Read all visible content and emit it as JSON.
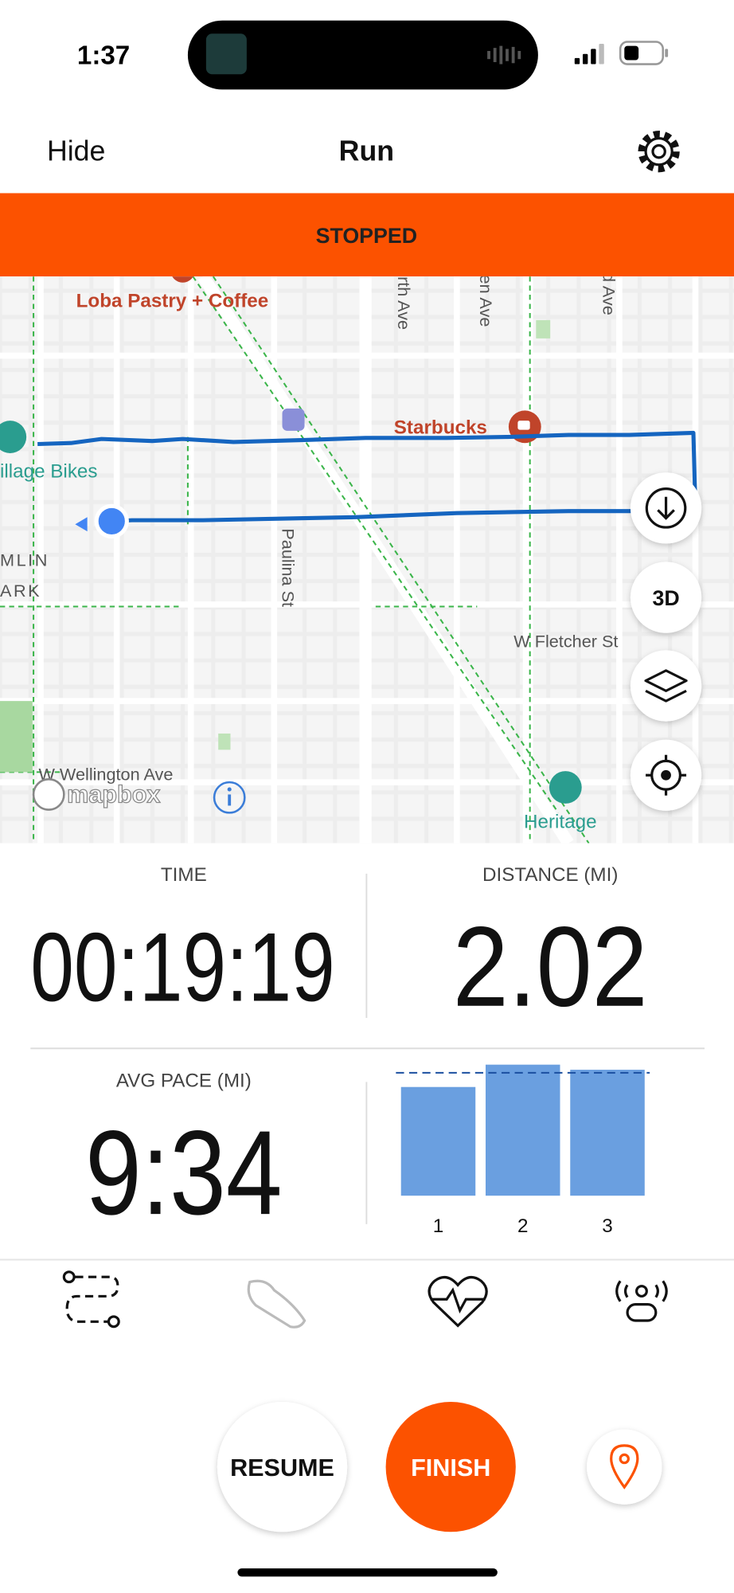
{
  "status_bar": {
    "time": "1:37"
  },
  "header": {
    "left": "Hide",
    "title": "Run"
  },
  "banner": "STOPPED",
  "map": {
    "places": [
      "Loba Pastry + Coffee",
      "Starbucks",
      "illage Bikes",
      "Heritage"
    ],
    "streets": [
      "rth Ave",
      "en Ave",
      "d Ave",
      "Paulina St",
      "W Fletcher St",
      "W Wellington Ave",
      "MLIN",
      "ARK"
    ],
    "button_3d": "3D",
    "attribution": "mapbox"
  },
  "stats": {
    "time": {
      "label": "TIME",
      "value": "00:19:19"
    },
    "distance": {
      "label": "DISTANCE (MI)",
      "value": "2.02"
    },
    "pace": {
      "label": "AVG PACE (MI)",
      "value": "9:34"
    }
  },
  "chart_data": {
    "type": "bar",
    "categories": [
      "1",
      "2",
      "3"
    ],
    "values": [
      107,
      129,
      124
    ],
    "reference": 121,
    "ylim": [
      0,
      130
    ],
    "color": "#6a9fe0"
  },
  "buttons": {
    "resume": "RESUME",
    "finish": "FINISH"
  }
}
